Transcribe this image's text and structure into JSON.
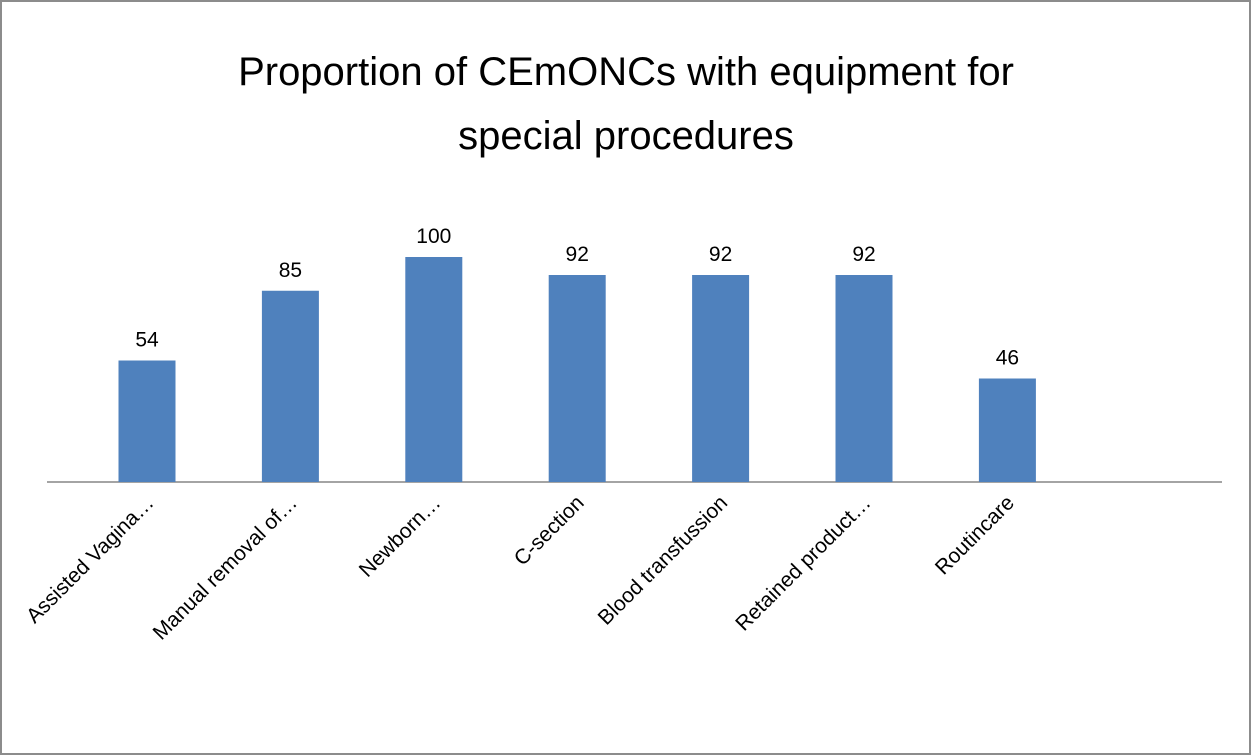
{
  "chart_data": {
    "type": "bar",
    "title": "Proportion of CEmONCs with equipment for special procedures",
    "categories": [
      "Assisted Vagina…",
      "Manual removal of…",
      "Newborn…",
      "C-section",
      "Blood transfussion",
      "Retained product…",
      "Routincare"
    ],
    "values": [
      54,
      85,
      100,
      92,
      92,
      92,
      46
    ],
    "color": "#4f81bd"
  }
}
